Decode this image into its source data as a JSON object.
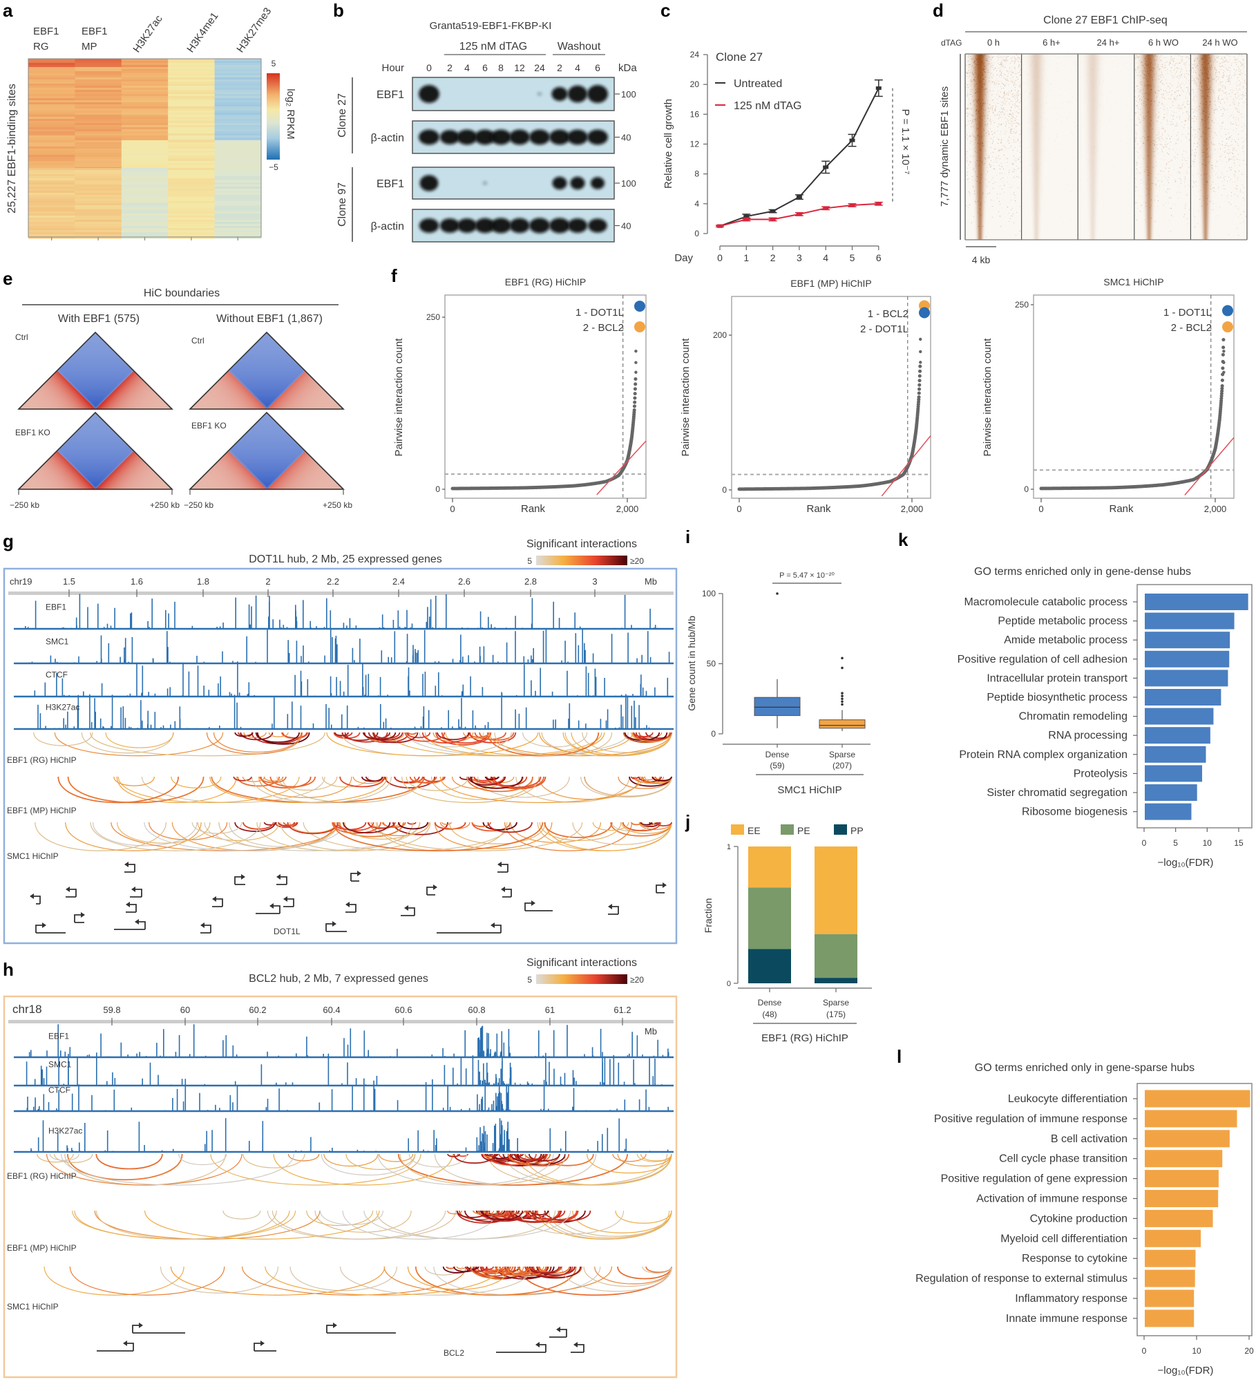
{
  "labels": {
    "a": "a",
    "b": "b",
    "c": "c",
    "d": "d",
    "e": "e",
    "f": "f",
    "g": "g",
    "h": "h",
    "i": "i",
    "j": "j",
    "k": "k",
    "l": "l"
  },
  "panel_b": {
    "title": "Granta519-EBF1-FKBP-KI",
    "treatment_label": "125 nM dTAG",
    "washout_label": "Washout",
    "hour_label": "Hour",
    "kda_label": "kDa",
    "lanes": [
      "0",
      "2",
      "4",
      "6",
      "8",
      "12",
      "24",
      "2",
      "4",
      "6"
    ],
    "clones": [
      {
        "name": "Clone 27",
        "blots": [
          {
            "protein": "EBF1",
            "kda": "100",
            "band_intensity": [
              1,
              0,
              0,
              0,
              0,
              0,
              0.05,
              0.6,
              0.9,
              1
            ]
          },
          {
            "protein": "β-actin",
            "kda": "40",
            "band_intensity": [
              1,
              0.9,
              1,
              1,
              1,
              1,
              1,
              1,
              1,
              1
            ]
          }
        ]
      },
      {
        "name": "Clone 97",
        "blots": [
          {
            "protein": "EBF1",
            "kda": "100",
            "band_intensity": [
              0.8,
              0,
              0,
              0.05,
              0,
              0,
              0,
              0.5,
              0.5,
              0.45
            ]
          },
          {
            "protein": "β-actin",
            "kda": "40",
            "band_intensity": [
              0.9,
              0.9,
              0.9,
              0.95,
              1,
              0.95,
              1,
              1,
              0.9,
              0.85
            ]
          }
        ]
      }
    ],
    "blot_color": "#c6dfe8"
  },
  "panel_d": {
    "title": "Clone 27 EBF1 ChIP-seq",
    "row_header": "dTAG",
    "columns": [
      "0 h",
      "6 h+",
      "24 h+",
      "6 h WO",
      "24 h WO"
    ],
    "signal_level": [
      1,
      0.25,
      0.2,
      0.85,
      0.9
    ],
    "row_label": "7,777 dynamic EBF1 sites",
    "scale_bar": "4 kb",
    "color": "#a0521a"
  },
  "panel_e": {
    "title": "HiC boundaries",
    "groups": [
      "With EBF1 (575)",
      "Without EBF1 (1,867)"
    ],
    "conditions": [
      "Ctrl",
      "EBF1 KO",
      "Ctrl",
      "EBF1 KO"
    ],
    "x_left": "−250 kb",
    "x_right": "+250 kb"
  },
  "panel_g": {
    "title": "DOT1L hub, 2 Mb, 25 expressed genes",
    "legend_title": "Significant interactions",
    "legend_min": "5",
    "legend_max": "≥20",
    "chrom": "chr19",
    "ticks": [
      "1.5",
      "1.6",
      "1.8",
      "2",
      "2.2",
      "2.4",
      "2.6",
      "2.8",
      "3"
    ],
    "unit": "Mb",
    "tracks": [
      "EBF1",
      "SMC1",
      "CTCF",
      "H3K27ac"
    ],
    "hichip": [
      "EBF1 (RG) HiChIP",
      "EBF1 (MP) HiChIP",
      "SMC1 HiChIP"
    ],
    "gene_label": "DOT1L",
    "frame_color": "#8fb0dc"
  },
  "panel_h": {
    "title": "BCL2 hub, 2 Mb, 7 expressed genes",
    "legend_title": "Significant interactions",
    "legend_min": "5",
    "legend_max": "≥20",
    "chrom": "chr18",
    "ticks": [
      "59.8",
      "60",
      "60.2",
      "60.4",
      "60.6",
      "60.8",
      "61",
      "61.2"
    ],
    "unit": "Mb",
    "tracks": [
      "EBF1",
      "SMC1",
      "CTCF",
      "H3K27ac"
    ],
    "hichip": [
      "EBF1 (RG) HiChIP",
      "EBF1 (MP) HiChIP",
      "SMC1 HiChIP"
    ],
    "gene_label": "BCL2",
    "frame_color": "#f5c89a"
  },
  "colors": {
    "track": "#2a6fb0",
    "dense": "#4a7fc1",
    "sparse": "#f2a445",
    "EE": "#f5b342",
    "PE": "#7a9a6a",
    "PP": "#0b4a5e",
    "untreated": "#333333",
    "dtag": "#d7263d"
  },
  "chart_data": [
    {
      "type": "heatmap",
      "columns": [
        {
          "l1": "EBF1",
          "l2": "RG"
        },
        {
          "l1": "EBF1",
          "l2": "MP"
        },
        {
          "l1": "H3K27ac"
        },
        {
          "l1": "H3K4me1"
        },
        {
          "l1": "H3K27me3"
        }
      ],
      "row_groups_values_log2rpkm": [
        [
          3.8,
          2.6,
          2.6,
          1.6
        ],
        [
          3.8,
          2.6,
          2.6,
          1.6
        ],
        [
          2.8,
          2.4,
          0.6,
          -0.6
        ],
        [
          0.9,
          0.9,
          0.9,
          0.9
        ],
        [
          -2.3,
          -2.3,
          -0.6,
          -0.8
        ]
      ],
      "ylabel": "25,227 EBF1-binding sites",
      "colorbar": {
        "max": "5",
        "min": "−5",
        "label": "log₂ RPKM"
      },
      "range": [
        -5,
        5
      ]
    },
    {
      "type": "line",
      "title": "Clone 27",
      "x": [
        0,
        1,
        2,
        3,
        4,
        5,
        6
      ],
      "xlabel": "Day",
      "ylabel": "Relative cell growth",
      "ylim": [
        0,
        24
      ],
      "yticks": [
        "0",
        "4",
        "8",
        "12",
        "16",
        "20",
        "24"
      ],
      "xticks": [
        "0",
        "1",
        "2",
        "3",
        "4",
        "5",
        "6"
      ],
      "series": [
        {
          "name": "Untreated",
          "values": [
            1,
            2.3,
            3,
            4.9,
            8.9,
            12.5,
            19.5
          ],
          "err": [
            0.1,
            0.3,
            0.2,
            0.3,
            0.8,
            0.8,
            1.1
          ]
        },
        {
          "name": "125 nM dTAG",
          "values": [
            1,
            1.9,
            1.9,
            2.6,
            3.4,
            3.8,
            4.0
          ],
          "err": [
            0.1,
            0.2,
            0.2,
            0.2,
            0.2,
            0.2,
            0.2
          ]
        }
      ],
      "annotation": "P = 1.1 × 10⁻⁷"
    },
    {
      "type": "scatter",
      "title": "EBF1 (RG) HiChIP",
      "xlabel": "Rank",
      "ylabel": "Pairwise interaction count",
      "xticks": [
        "0",
        "2,000"
      ],
      "yticks": [
        "0",
        "250"
      ],
      "ytick_values": [
        0,
        250
      ],
      "curve": [
        [
          0,
          1
        ],
        [
          800,
          2
        ],
        [
          1400,
          5
        ],
        [
          1750,
          11
        ],
        [
          1900,
          20
        ],
        [
          2000,
          42
        ],
        [
          2050,
          75
        ],
        [
          2080,
          115
        ],
        [
          2095,
          164
        ]
      ],
      "cutoff_rank": 1950,
      "cutoff_count": 22,
      "top": [
        {
          "label": "1 - DOT1L",
          "count": 266,
          "color": "#2b6cb3"
        },
        {
          "label": "2 - BCL2",
          "count": 236,
          "color": "#f2a445"
        }
      ]
    },
    {
      "type": "scatter",
      "title": "EBF1 (MP) HiChIP",
      "xlabel": "Rank",
      "ylabel": "Pairwise interaction count",
      "xticks": [
        "0",
        "2,000"
      ],
      "yticks": [
        "0",
        "200"
      ],
      "ytick_values": [
        0,
        200
      ],
      "curve": [
        [
          0,
          1
        ],
        [
          800,
          2
        ],
        [
          1400,
          5
        ],
        [
          1750,
          11
        ],
        [
          1900,
          20
        ],
        [
          2000,
          45
        ],
        [
          2050,
          80
        ],
        [
          2080,
          120
        ],
        [
          2095,
          163
        ]
      ],
      "cutoff_rank": 1950,
      "cutoff_count": 20,
      "top": [
        {
          "label": "1 - BCL2",
          "count": 238,
          "color": "#f2a445"
        },
        {
          "label": "2 - DOT1L",
          "count": 229,
          "color": "#2b6cb3"
        }
      ]
    },
    {
      "type": "scatter",
      "title": "SMC1 HiChIP",
      "xlabel": "Rank",
      "ylabel": "Pairwise interaction count",
      "xticks": [
        "0",
        "2,000"
      ],
      "yticks": [
        "0",
        "250"
      ],
      "ytick_values": [
        0,
        250
      ],
      "curve": [
        [
          0,
          1
        ],
        [
          800,
          2
        ],
        [
          1400,
          6
        ],
        [
          1750,
          13
        ],
        [
          1900,
          26
        ],
        [
          2000,
          55
        ],
        [
          2050,
          95
        ],
        [
          2080,
          140
        ],
        [
          2095,
          208
        ]
      ],
      "cutoff_rank": 1950,
      "cutoff_count": 26,
      "top": [
        {
          "label": "1 - DOT1L",
          "count": 242,
          "color": "#2b6cb3"
        },
        {
          "label": "2 - BCL2",
          "count": 220,
          "color": "#f2a445"
        }
      ]
    },
    {
      "type": "box",
      "ylabel": "Gene count in hub/Mb",
      "ylim": [
        0,
        100
      ],
      "yticks": [
        "0",
        "50",
        "100"
      ],
      "categories": [
        {
          "name": "Dense",
          "n": "(59)"
        },
        {
          "name": "Sparse",
          "n": "(207)"
        }
      ],
      "boxes": [
        {
          "min": 4,
          "q1": 13,
          "median": 19,
          "q3": 26,
          "max": 39,
          "outliers": [
            100
          ]
        },
        {
          "min": 2,
          "q1": 4,
          "median": 6,
          "q3": 10,
          "max": 17,
          "outliers": [
            21,
            23,
            25,
            27,
            29,
            47,
            54
          ]
        }
      ],
      "group_label": "SMC1 HiChIP",
      "pvalue": "P = 5.47 × 10⁻²⁰"
    },
    {
      "type": "bar",
      "stacked": true,
      "ylabel": "Fraction",
      "yticks": [
        "0",
        "1"
      ],
      "categories": [
        {
          "name": "Dense",
          "n": "(48)"
        },
        {
          "name": "Sparse",
          "n": "(175)"
        }
      ],
      "series": [
        {
          "name": "PP",
          "values": [
            0.25,
            0.04
          ]
        },
        {
          "name": "PE",
          "values": [
            0.45,
            0.32
          ]
        },
        {
          "name": "EE",
          "values": [
            0.3,
            0.64
          ]
        }
      ],
      "legend": [
        "EE",
        "PE",
        "PP"
      ],
      "group_label": "EBF1 (RG) HiChIP"
    },
    {
      "type": "bar",
      "orientation": "horizontal",
      "title": "GO terms enriched only in gene-dense hubs",
      "categories": [
        "Macromolecule catabolic process",
        "Peptide metabolic process",
        "Amide metabolic process",
        "Positive regulation of cell adhesion",
        "Intracellular protein transport",
        "Peptide biosynthetic process",
        "Chromatin remodeling",
        "RNA processing",
        "Protein RNA complex organization",
        "Proteolysis",
        "Sister chromatid segregation",
        "Ribosome biogenesis"
      ],
      "values": [
        16.5,
        14.3,
        13.6,
        13.5,
        13.3,
        12.2,
        11.0,
        10.5,
        9.8,
        9.2,
        8.4,
        7.5
      ],
      "xticks": [
        "0",
        "5",
        "10",
        "15"
      ],
      "xtick_values": [
        0,
        5,
        10,
        15
      ],
      "xlabel": "−log₁₀(FDR)"
    },
    {
      "type": "bar",
      "orientation": "horizontal",
      "title": "GO terms enriched only in gene-sparse hubs",
      "categories": [
        "Leukocyte differentiation",
        "Positive regulation of immune response",
        "B cell activation",
        "Cell cycle phase transition",
        "Positive regulation of gene expression",
        "Activation of immune response",
        "Cytokine production",
        "Myeloid cell differentiation",
        "Response to cytokine",
        "Regulation of response to external stimulus",
        "Inflammatory response",
        "Innate immune response"
      ],
      "values": [
        20.2,
        17.7,
        16.3,
        14.9,
        14.2,
        14.1,
        13.1,
        10.8,
        9.8,
        9.7,
        9.5,
        9.5
      ],
      "xticks": [
        "0",
        "10",
        "20"
      ],
      "xtick_values": [
        0,
        10,
        20
      ],
      "xlabel": "−log₁₀(FDR)"
    }
  ]
}
